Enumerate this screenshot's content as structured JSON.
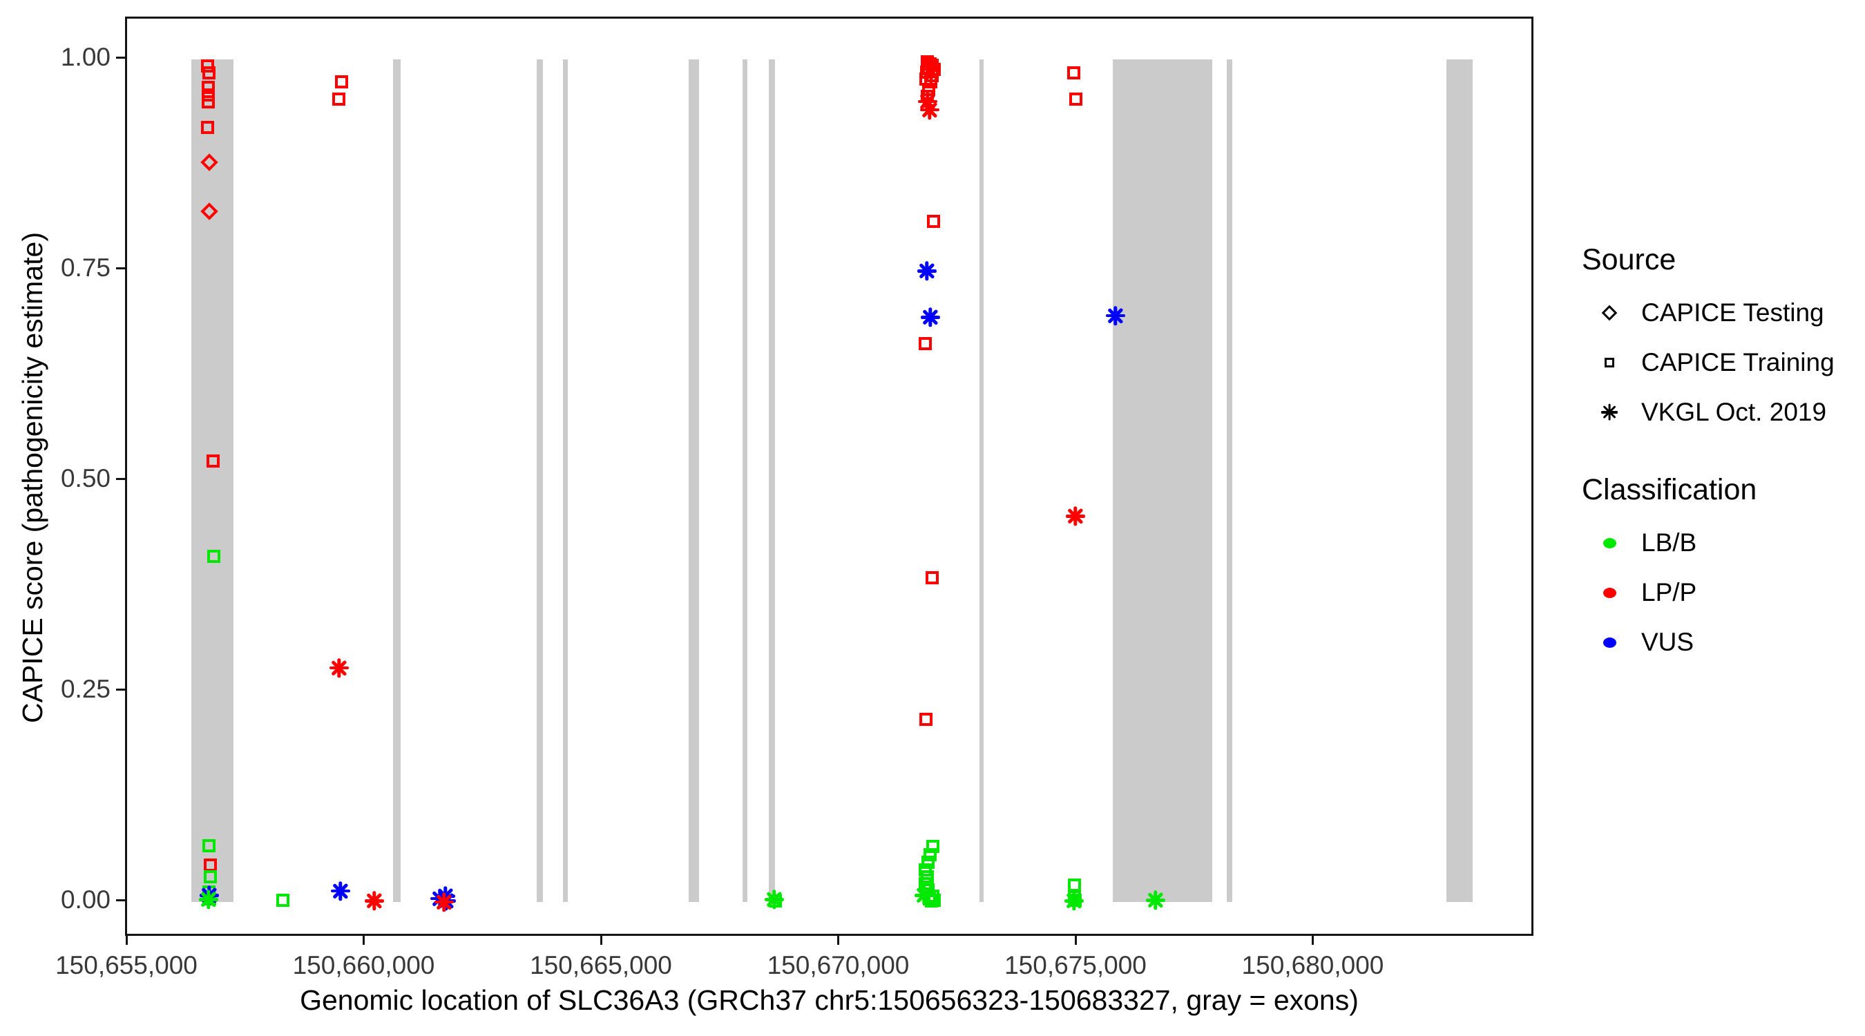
{
  "figure": {
    "x_axis": {
      "title": "Genomic location of SLC36A3 (GRCh37 chr5:150656323-150683327, gray = exons)",
      "ticks": [
        {
          "value": 150655000,
          "label": "150,655,000"
        },
        {
          "value": 150660000,
          "label": "150,660,000"
        },
        {
          "value": 150665000,
          "label": "150,665,000"
        },
        {
          "value": 150670000,
          "label": "150,670,000"
        },
        {
          "value": 150675000,
          "label": "150,675,000"
        },
        {
          "value": 150680000,
          "label": "150,680,000"
        }
      ]
    },
    "y_axis": {
      "title": "CAPICE score (pathogenicity estimate)",
      "ticks": [
        {
          "value": 0.0,
          "label": "0.00"
        },
        {
          "value": 0.25,
          "label": "0.25"
        },
        {
          "value": 0.5,
          "label": "0.50"
        },
        {
          "value": 0.75,
          "label": "0.75"
        },
        {
          "value": 1.0,
          "label": "1.00"
        }
      ]
    },
    "legend": {
      "source": {
        "title": "Source",
        "items": [
          {
            "label": "CAPICE Testing",
            "shape": "diamond",
            "source_key": "testing"
          },
          {
            "label": "CAPICE Training",
            "shape": "square",
            "source_key": "training"
          },
          {
            "label": "VKGL Oct. 2019",
            "shape": "asterisk",
            "source_key": "vkgl"
          }
        ]
      },
      "classification": {
        "title": "Classification",
        "items": [
          {
            "label": "LB/B",
            "class_key": "LBB"
          },
          {
            "label": "LP/P",
            "class_key": "LPP"
          },
          {
            "label": "VUS",
            "class_key": "VUS"
          }
        ]
      }
    },
    "colors": {
      "LBB": "#00E800",
      "LPP": "#FF0000",
      "VUS": "#0000FF",
      "exon": "#CBCBCB",
      "axis_text": "#383838",
      "panel_border": "#141414"
    }
  },
  "chart_data": {
    "type": "scatter",
    "title": "",
    "xlabel": "Genomic location of SLC36A3 (GRCh37 chr5:150656323-150683327, gray = exons)",
    "ylabel": "CAPICE score (pathogenicity estimate)",
    "x_range": [
      150654971,
      150684651
    ],
    "y_range": [
      -0.043,
      1.048
    ],
    "grid": false,
    "legend_position": "right",
    "shape_by_source": {
      "testing": "diamond",
      "training": "square",
      "vkgl": "asterisk"
    },
    "exon_regions": [
      [
        150656330,
        150657210
      ],
      [
        150660570,
        150660740
      ],
      [
        150663600,
        150663730
      ],
      [
        150664150,
        150664260
      ],
      [
        150666800,
        150667030
      ],
      [
        150667940,
        150668040
      ],
      [
        150668490,
        150668620
      ],
      [
        150672928,
        150673015
      ],
      [
        150675740,
        150677840
      ],
      [
        150678150,
        150678260
      ],
      [
        150682780,
        150683327
      ]
    ],
    "point_columns": [
      "genomic_position",
      "capice_score",
      "source",
      "classification"
    ],
    "points": [
      [
        150656660,
        0.992,
        "training",
        "LPP"
      ],
      [
        150656695,
        0.984,
        "training",
        "LPP"
      ],
      [
        150656680,
        0.967,
        "training",
        "LPP"
      ],
      [
        150656680,
        0.958,
        "training",
        "LPP"
      ],
      [
        150656680,
        0.95,
        "training",
        "LPP"
      ],
      [
        150656670,
        0.919,
        "training",
        "LPP"
      ],
      [
        150656700,
        0.878,
        "testing",
        "LPP"
      ],
      [
        150656705,
        0.82,
        "testing",
        "LPP"
      ],
      [
        150656785,
        0.523,
        "training",
        "LPP"
      ],
      [
        150656795,
        0.41,
        "training",
        "LBB"
      ],
      [
        150656695,
        0.067,
        "training",
        "LBB"
      ],
      [
        150656730,
        0.044,
        "training",
        "LPP"
      ],
      [
        150656725,
        0.03,
        "training",
        "LBB"
      ],
      [
        150656700,
        0.012,
        "training",
        "LBB"
      ],
      [
        150656712,
        0.004,
        "training",
        "LBB"
      ],
      [
        150656702,
        0.008,
        "vkgl",
        "VUS"
      ],
      [
        150656688,
        0.003,
        "vkgl",
        "LBB"
      ],
      [
        150658255,
        0.002,
        "training",
        "LBB"
      ],
      [
        150659492,
        0.973,
        "training",
        "LPP"
      ],
      [
        150659430,
        0.953,
        "training",
        "LPP"
      ],
      [
        150659435,
        0.278,
        "vkgl",
        "LPP"
      ],
      [
        150659472,
        0.013,
        "vkgl",
        "VUS"
      ],
      [
        150660185,
        0.001,
        "vkgl",
        "LPP"
      ],
      [
        150661560,
        0.004,
        "vkgl",
        "VUS"
      ],
      [
        150661680,
        0.007,
        "vkgl",
        "VUS"
      ],
      [
        150661700,
        0.001,
        "vkgl",
        "VUS"
      ],
      [
        150661650,
        0.0,
        "vkgl",
        "LPP"
      ],
      [
        150668610,
        0.003,
        "vkgl",
        "LBB"
      ],
      [
        150668625,
        0.001,
        "training",
        "LBB"
      ],
      [
        150671840,
        0.997,
        "training",
        "LPP"
      ],
      [
        150671890,
        0.995,
        "training",
        "LPP"
      ],
      [
        150671940,
        0.993,
        "training",
        "LPP"
      ],
      [
        150671870,
        0.99,
        "training",
        "LPP"
      ],
      [
        150671980,
        0.988,
        "training",
        "LPP"
      ],
      [
        150671820,
        0.985,
        "training",
        "LPP"
      ],
      [
        150671930,
        0.981,
        "training",
        "LPP"
      ],
      [
        150671810,
        0.977,
        "training",
        "LPP"
      ],
      [
        150671900,
        0.973,
        "training",
        "LPP"
      ],
      [
        150671860,
        0.964,
        "training",
        "LPP"
      ],
      [
        150671830,
        0.956,
        "training",
        "LPP"
      ],
      [
        150671845,
        0.95,
        "vkgl",
        "LPP"
      ],
      [
        150671885,
        0.94,
        "vkgl",
        "LPP"
      ],
      [
        150671965,
        0.808,
        "training",
        "LPP"
      ],
      [
        150671825,
        0.749,
        "vkgl",
        "VUS"
      ],
      [
        150671900,
        0.694,
        "vkgl",
        "VUS"
      ],
      [
        150671795,
        0.663,
        "training",
        "LPP"
      ],
      [
        150671935,
        0.385,
        "training",
        "LPP"
      ],
      [
        150671805,
        0.217,
        "training",
        "LPP"
      ],
      [
        150671955,
        0.066,
        "training",
        "LBB"
      ],
      [
        150671890,
        0.056,
        "training",
        "LBB"
      ],
      [
        150671850,
        0.047,
        "training",
        "LBB"
      ],
      [
        150671795,
        0.038,
        "training",
        "LBB"
      ],
      [
        150671830,
        0.03,
        "training",
        "LBB"
      ],
      [
        150671785,
        0.022,
        "training",
        "LBB"
      ],
      [
        150671850,
        0.014,
        "training",
        "LBB"
      ],
      [
        150671945,
        0.007,
        "training",
        "LBB"
      ],
      [
        150671880,
        0.004,
        "training",
        "LBB"
      ],
      [
        150671985,
        0.002,
        "training",
        "LBB"
      ],
      [
        150671915,
        0.001,
        "training",
        "LBB"
      ],
      [
        150671775,
        0.008,
        "vkgl",
        "LBB"
      ],
      [
        150674920,
        0.984,
        "training",
        "LPP"
      ],
      [
        150674965,
        0.953,
        "training",
        "LPP"
      ],
      [
        150674950,
        0.458,
        "vkgl",
        "LPP"
      ],
      [
        150674940,
        0.02,
        "training",
        "LBB"
      ],
      [
        150674930,
        0.006,
        "training",
        "LBB"
      ],
      [
        150674955,
        0.002,
        "training",
        "LBB"
      ],
      [
        150674925,
        0.001,
        "vkgl",
        "LBB"
      ],
      [
        150675795,
        0.696,
        "vkgl",
        "VUS"
      ],
      [
        150676645,
        0.002,
        "vkgl",
        "LBB"
      ]
    ]
  }
}
